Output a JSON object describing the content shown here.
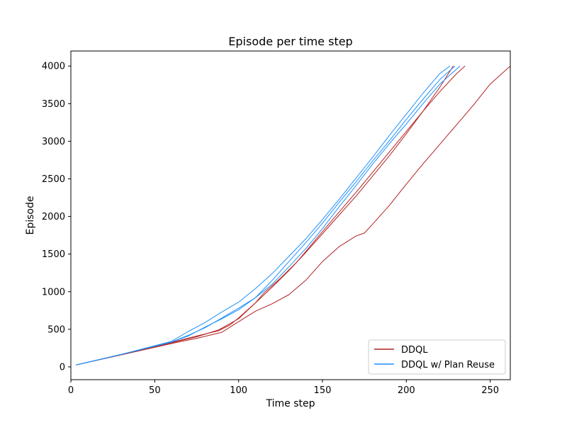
{
  "chart_data": {
    "type": "line",
    "title": "Episode per time step",
    "xlabel": "Time step",
    "ylabel": "Episode",
    "xlim": [
      0,
      262
    ],
    "ylim": [
      -170,
      4200
    ],
    "xticks": [
      0,
      50,
      100,
      150,
      200,
      250
    ],
    "yticks": [
      0,
      500,
      1000,
      1500,
      2000,
      2500,
      3000,
      3500,
      4000
    ],
    "grid": false,
    "legend_position": "lower-right",
    "legend": [
      {
        "label": "DDQL",
        "color": "#b22222"
      },
      {
        "label": "DDQL w/ Plan Reuse",
        "color": "#1e90ff"
      }
    ],
    "series": [
      {
        "group": "DDQL",
        "color": "#b22222",
        "x": [
          3,
          30,
          60,
          75,
          88,
          95,
          100,
          110,
          115,
          125,
          135,
          150,
          160,
          170,
          180,
          190,
          200,
          210,
          220,
          230,
          235
        ],
        "y": [
          25,
          165,
          325,
          410,
          480,
          560,
          650,
          850,
          980,
          1180,
          1400,
          1800,
          2060,
          2320,
          2590,
          2860,
          3130,
          3400,
          3660,
          3900,
          4000
        ]
      },
      {
        "group": "DDQL",
        "color": "#b22222",
        "x": [
          3,
          30,
          60,
          75,
          90,
          100,
          110,
          120,
          130,
          140,
          150,
          160,
          170,
          175,
          180,
          190,
          200,
          210,
          220,
          230,
          240,
          250,
          262
        ],
        "y": [
          25,
          160,
          310,
          380,
          460,
          600,
          740,
          840,
          960,
          1150,
          1400,
          1600,
          1740,
          1780,
          1900,
          2150,
          2430,
          2700,
          2960,
          3220,
          3480,
          3760,
          4000
        ]
      },
      {
        "group": "DDQL",
        "color": "#b22222",
        "x": [
          3,
          30,
          60,
          75,
          88,
          100,
          110,
          120,
          130,
          140,
          150,
          160,
          170,
          180,
          190,
          200,
          210,
          220,
          228
        ],
        "y": [
          25,
          165,
          320,
          400,
          490,
          640,
          850,
          1060,
          1280,
          1520,
          1770,
          2020,
          2270,
          2540,
          2810,
          3100,
          3400,
          3720,
          4000
        ]
      },
      {
        "group": "DDQL w/ Plan Reuse",
        "color": "#1e90ff",
        "x": [
          3,
          30,
          60,
          70,
          80,
          90,
          100,
          110,
          120,
          130,
          140,
          150,
          160,
          170,
          180,
          190,
          200,
          210,
          220,
          226
        ],
        "y": [
          25,
          165,
          340,
          470,
          590,
          730,
          860,
          1040,
          1240,
          1470,
          1700,
          1960,
          2230,
          2510,
          2790,
          3080,
          3360,
          3640,
          3900,
          4000
        ]
      },
      {
        "group": "DDQL w/ Plan Reuse",
        "color": "#1e90ff",
        "x": [
          3,
          30,
          60,
          70,
          80,
          90,
          100,
          110,
          120,
          130,
          140,
          150,
          160,
          170,
          180,
          190,
          200,
          210,
          220,
          229
        ],
        "y": [
          25,
          165,
          330,
          410,
          530,
          640,
          760,
          920,
          1150,
          1400,
          1650,
          1910,
          2190,
          2460,
          2740,
          3010,
          3290,
          3560,
          3820,
          4000
        ]
      },
      {
        "group": "DDQL w/ Plan Reuse",
        "color": "#1e90ff",
        "x": [
          3,
          30,
          60,
          70,
          80,
          90,
          100,
          110,
          120,
          130,
          140,
          150,
          160,
          170,
          180,
          190,
          200,
          210,
          220,
          232
        ],
        "y": [
          25,
          165,
          330,
          420,
          520,
          650,
          780,
          920,
          1100,
          1330,
          1570,
          1840,
          2130,
          2410,
          2700,
          2970,
          3230,
          3500,
          3760,
          4000
        ]
      }
    ]
  }
}
